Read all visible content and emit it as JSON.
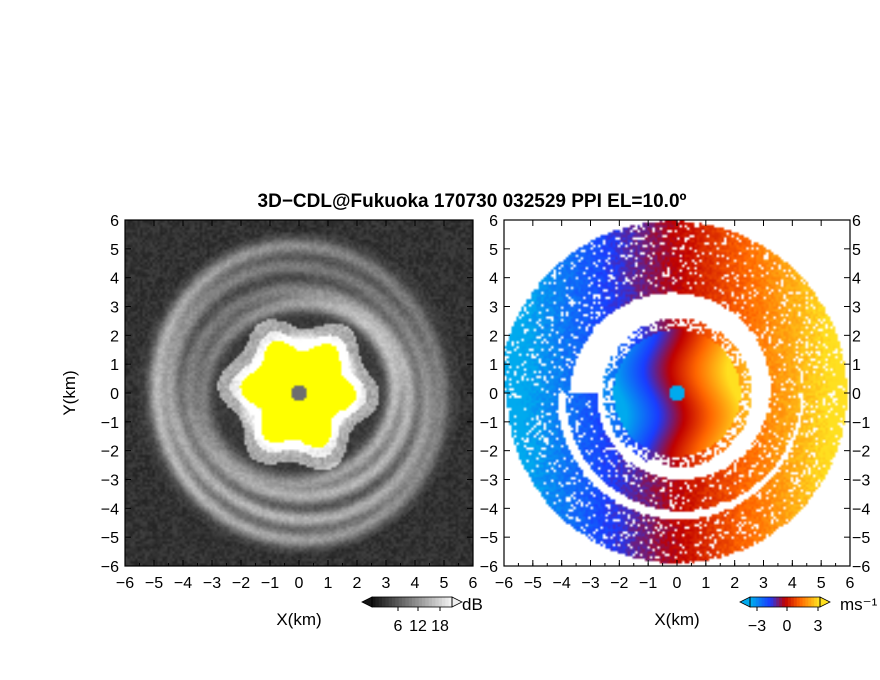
{
  "title": "3D−CDL@Fukuoka 170730 032529 PPI EL=10.0º",
  "chart_data": [
    {
      "type": "heatmap",
      "panel": "left",
      "quantity": "reflectivity",
      "xlabel": "X(km)",
      "ylabel": "Y(km)",
      "xlim": [
        -6,
        6
      ],
      "ylim": [
        -6,
        6
      ],
      "x_ticks": [
        "−6",
        "−5",
        "−4",
        "−3",
        "−2",
        "−1",
        "0",
        "1",
        "2",
        "3",
        "4",
        "5",
        "6"
      ],
      "y_ticks": [
        "6",
        "5",
        "4",
        "3",
        "2",
        "1",
        "0",
        "−1",
        "−2",
        "−3",
        "−4",
        "−5",
        "−6"
      ],
      "colorscale": "grayscale, saturated yellow at high values",
      "colorbar": {
        "unit": "dB",
        "ticks": [
          "6",
          "12",
          "18"
        ]
      },
      "rings_km": [
        1.7,
        3.2,
        3.7,
        4.4,
        5.0
      ],
      "saturated_core_radius_km": 2.0
    },
    {
      "type": "heatmap",
      "panel": "right",
      "quantity": "doppler velocity",
      "xlabel": "X(km)",
      "xlim": [
        -6,
        6
      ],
      "ylim": [
        -6,
        6
      ],
      "x_ticks": [
        "−6",
        "−5",
        "−4",
        "−3",
        "−2",
        "−1",
        "0",
        "1",
        "2",
        "3",
        "4",
        "5",
        "6"
      ],
      "y_ticks": [
        "6",
        "5",
        "4",
        "3",
        "2",
        "1",
        "0",
        "−1",
        "−2",
        "−3",
        "−4",
        "−5",
        "−6"
      ],
      "colorscale": "blue (negative) to red-yellow (positive)",
      "colorbar": {
        "unit": "ms⁻¹",
        "ticks": [
          "−3",
          "0",
          "3"
        ]
      },
      "colors": {
        "neg_strong": "#00aaee",
        "neg": "#1a3cff",
        "zero": "#c00000",
        "pos": "#ff6600",
        "pos_strong": "#ffe020"
      }
    }
  ]
}
